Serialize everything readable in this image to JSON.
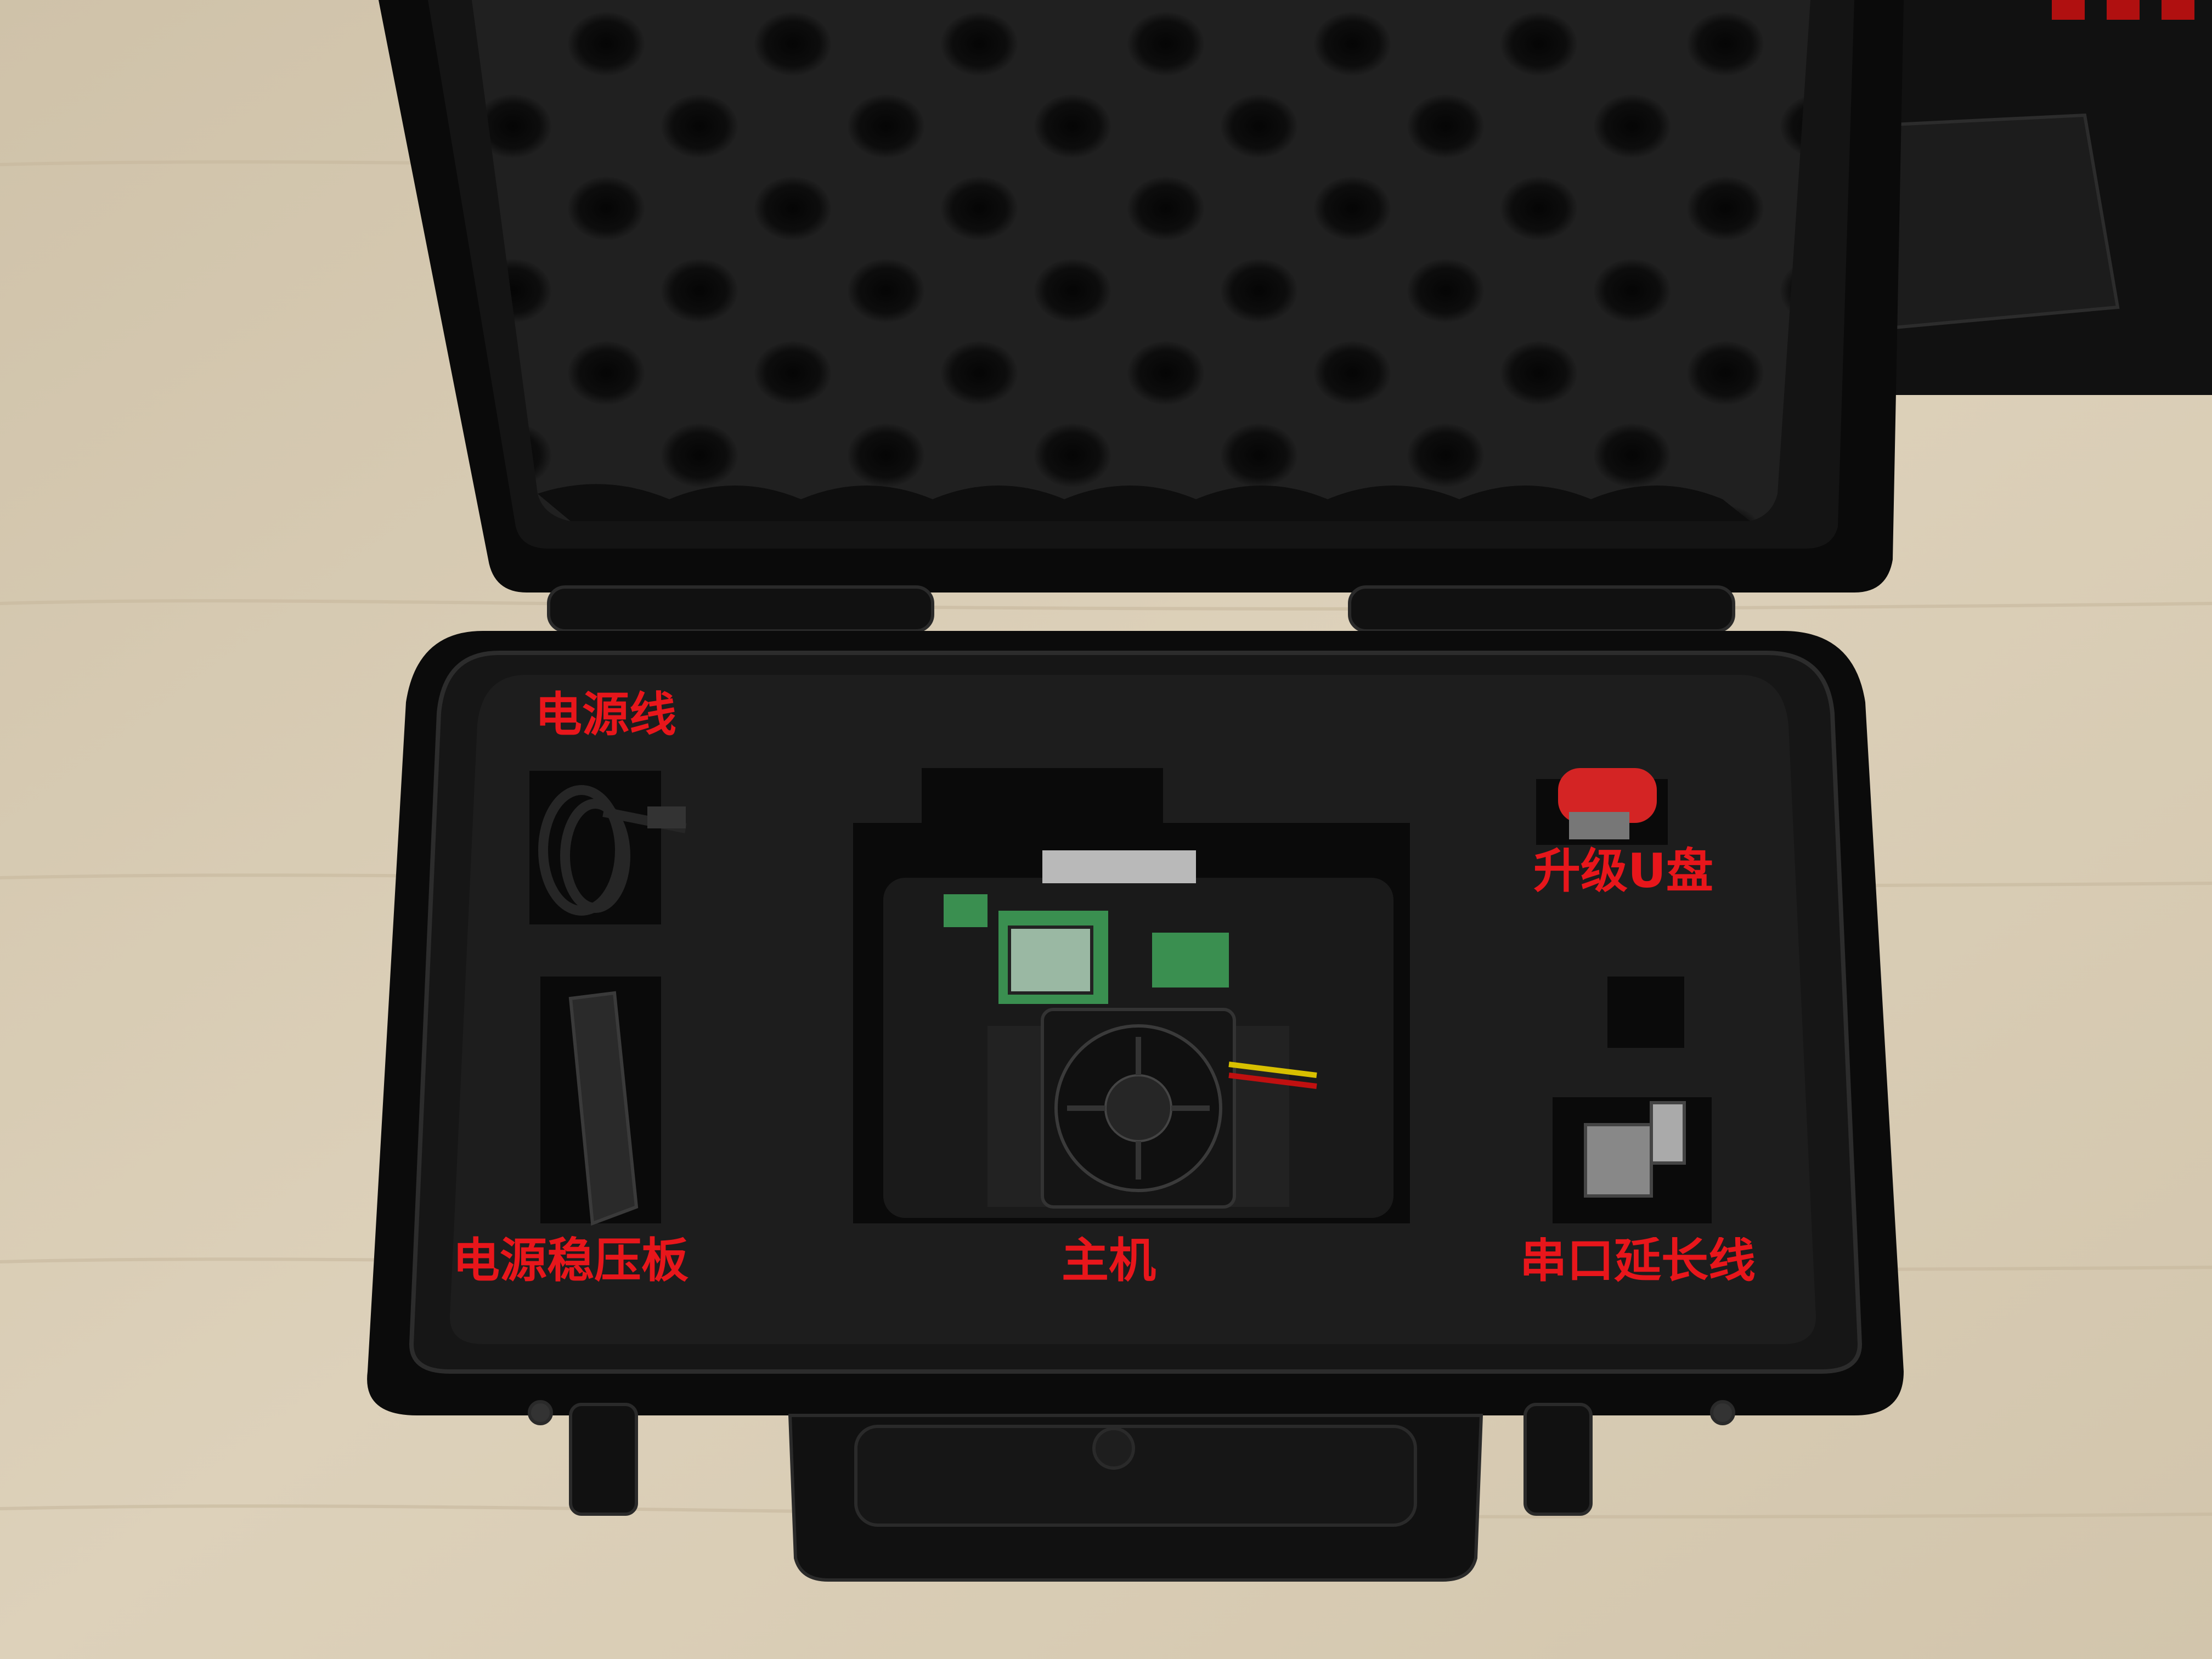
{
  "labels": {
    "power_cable": "电源线",
    "regulator_board": "电源稳压板",
    "host": "主机",
    "upgrade_usb": "升级U盘",
    "serial_extension": "串口延长线"
  },
  "colors": {
    "label": "#e8161b",
    "foam": "#1b1b1b",
    "case": "#0c0c0c",
    "desk": "#d9cdb6"
  }
}
